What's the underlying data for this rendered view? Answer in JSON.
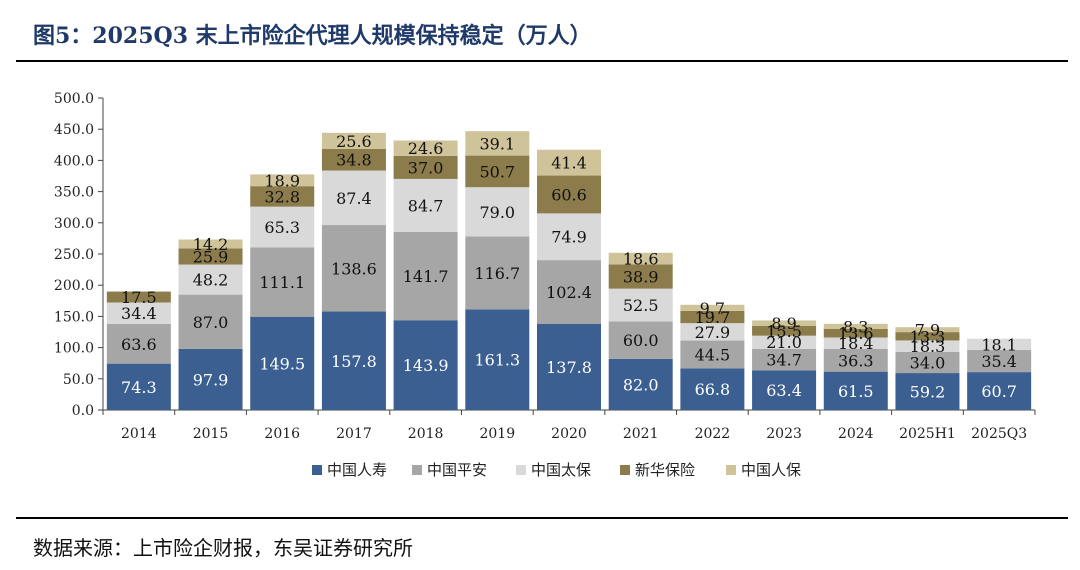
{
  "title": "图5：2025Q3 末上市险企代理人规模保持稳定（万人）",
  "source": "数据来源：上市险企财报，东吴证券研究所",
  "chart_data": {
    "type": "bar",
    "stacked": true,
    "categories": [
      "2014",
      "2015",
      "2016",
      "2017",
      "2018",
      "2019",
      "2020",
      "2021",
      "2022",
      "2023",
      "2024",
      "2025H1",
      "2025Q3"
    ],
    "yticks": [
      "0.0",
      "50.0",
      "100.0",
      "150.0",
      "200.0",
      "250.0",
      "300.0",
      "350.0",
      "400.0",
      "450.0",
      "500.0"
    ],
    "ylim": [
      0,
      500
    ],
    "legend_position": "bottom",
    "series": [
      {
        "name": "中国人寿",
        "color": "#3c5f91",
        "label_color": "#ffffff",
        "values": [
          74.3,
          97.9,
          149.5,
          157.8,
          143.9,
          161.3,
          137.8,
          82.0,
          66.8,
          63.4,
          61.5,
          59.2,
          60.7
        ],
        "labels": [
          "74.3",
          "97.9",
          "149.5",
          "157.8",
          "143.9",
          "161.3",
          "137.8",
          "82.0",
          "66.8",
          "63.4",
          "61.5",
          "59.2",
          "60.7"
        ]
      },
      {
        "name": "中国平安",
        "color": "#a6a6a6",
        "label_color": "#111111",
        "values": [
          63.6,
          87.0,
          111.1,
          138.6,
          141.7,
          116.7,
          102.4,
          60.0,
          44.5,
          34.7,
          36.3,
          34.0,
          35.4
        ],
        "labels": [
          "63.6",
          "87.0",
          "111.1",
          "138.6",
          "141.7",
          "116.7",
          "102.4",
          "60.0",
          "44.5",
          "34.7",
          "36.3",
          "34.0",
          "35.4"
        ]
      },
      {
        "name": "中国太保",
        "color": "#d9d9d9",
        "label_color": "#111111",
        "values": [
          34.4,
          48.2,
          65.3,
          87.4,
          84.7,
          79.0,
          74.9,
          52.5,
          27.9,
          21.0,
          18.4,
          18.3,
          18.1
        ],
        "labels": [
          "34.4",
          "48.2",
          "65.3",
          "87.4",
          "84.7",
          "79.0",
          "74.9",
          "52.5",
          "27.9",
          "21.0",
          "18.4",
          "18.3",
          "18.1"
        ]
      },
      {
        "name": "新华保险",
        "color": "#8c7b4b",
        "label_color": "#111111",
        "values": [
          17.5,
          25.9,
          32.8,
          34.8,
          37.0,
          50.7,
          60.6,
          38.9,
          19.7,
          15.5,
          13.6,
          13.3,
          0
        ],
        "labels": [
          "17.5",
          "25.9",
          "32.8",
          "34.8",
          "37.0",
          "50.7",
          "60.6",
          "38.9",
          "19.7",
          "15.5",
          "13.6",
          "13.3",
          ""
        ]
      },
      {
        "name": "中国人保",
        "color": "#cfc39a",
        "label_color": "#111111",
        "values": [
          0,
          14.2,
          18.9,
          25.6,
          24.6,
          39.1,
          41.4,
          18.6,
          9.7,
          8.9,
          8.3,
          7.9,
          0
        ],
        "labels": [
          "",
          "14.2",
          "18.9",
          "25.6",
          "24.6",
          "39.1",
          "41.4",
          "18.6",
          "9.7",
          "8.9",
          "8.3",
          "7.9",
          ""
        ]
      }
    ]
  }
}
